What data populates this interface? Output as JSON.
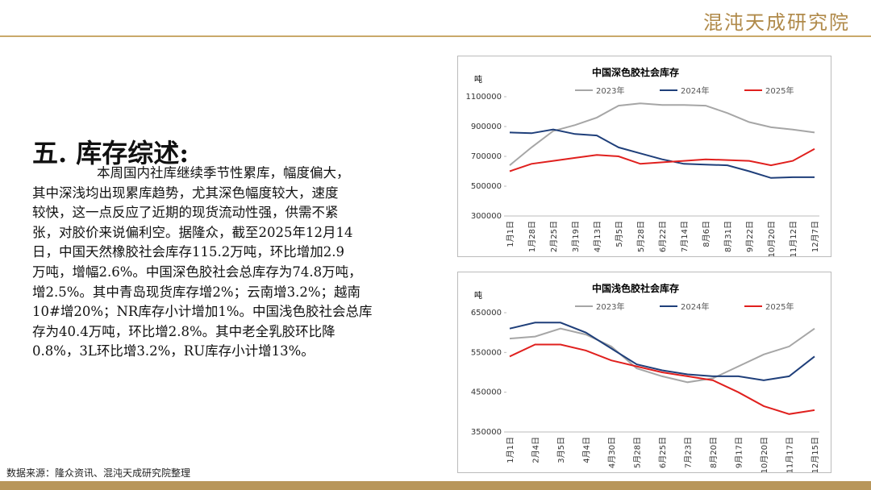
{
  "header": {
    "logo": "混沌天成研究院"
  },
  "section": {
    "title": "五. 库存综述:",
    "body_lines": [
      "本周国内社库继续季节性累库，幅度偏大，",
      "其中深浅均出现累库趋势，尤其深色幅度较大，速度",
      "较快，这一点反应了近期的现货流动性强，供需不紧",
      "张，对胶价来说偏利空。据隆众，截至2025年12月14",
      "日，中国天然橡胶社会库存115.2万吨，环比增加2.9",
      "万吨，增幅2.6%。中国深色胶社会总库存为74.8万吨，",
      "增2.5%。其中青岛现货库存增2%；云南增3.2%；越南",
      "10#增20%；NR库存小计增加1%。中国浅色胶社会总库",
      "存为40.4万吨，环比增2.8%。其中老全乳胶环比降",
      "0.8%，3L环比增3.2%，RU库存小计增13%。"
    ]
  },
  "source": "数据来源：隆众资讯、混沌天成研究院整理",
  "chart_data": [
    {
      "type": "line",
      "title": "中国深色胶社会库存",
      "y_label": "吨",
      "categories": [
        "1月1日",
        "1月28日",
        "2月25日",
        "3月19日",
        "4月13日",
        "5月5日",
        "5月28日",
        "6月22日",
        "7月14日",
        "8月6日",
        "8月31日",
        "9月22日",
        "10月20日",
        "11月12日",
        "12月7日"
      ],
      "series": [
        {
          "name": "2023年",
          "color": "#a6a6a6",
          "values": [
            640000,
            760000,
            870000,
            910000,
            960000,
            1040000,
            1055000,
            1045000,
            1045000,
            1040000,
            990000,
            930000,
            895000,
            880000,
            860000
          ]
        },
        {
          "name": "2024年",
          "color": "#1f3f7a",
          "values": [
            860000,
            855000,
            880000,
            850000,
            840000,
            760000,
            720000,
            680000,
            650000,
            645000,
            640000,
            600000,
            555000,
            560000,
            560000
          ]
        },
        {
          "name": "2025年",
          "color": "#e0201e",
          "values": [
            600000,
            650000,
            670000,
            690000,
            710000,
            700000,
            650000,
            660000,
            670000,
            680000,
            675000,
            670000,
            640000,
            670000,
            750000
          ]
        }
      ],
      "ylim": [
        300000,
        1100000
      ],
      "yticks": [
        300000,
        500000,
        700000,
        900000,
        1100000
      ]
    },
    {
      "type": "line",
      "title": "中国浅色胶社会库存",
      "y_label": "吨",
      "categories": [
        "1月1日",
        "2月4日",
        "3月5日",
        "4月4日",
        "4月30日",
        "5月28日",
        "6月25日",
        "7月23日",
        "8月20日",
        "9月17日",
        "10月20日",
        "11月17日",
        "12月15日"
      ],
      "series": [
        {
          "name": "2023年",
          "color": "#a6a6a6",
          "values": [
            585000,
            590000,
            610000,
            595000,
            565000,
            510000,
            490000,
            475000,
            485000,
            515000,
            545000,
            565000,
            610000
          ]
        },
        {
          "name": "2024年",
          "color": "#1f3f7a",
          "values": [
            610000,
            625000,
            625000,
            600000,
            560000,
            520000,
            505000,
            495000,
            490000,
            490000,
            480000,
            490000,
            540000
          ]
        },
        {
          "name": "2025年",
          "color": "#e0201e",
          "values": [
            540000,
            570000,
            570000,
            555000,
            530000,
            515000,
            500000,
            490000,
            480000,
            450000,
            415000,
            395000,
            405000
          ]
        }
      ],
      "ylim": [
        350000,
        650000
      ],
      "yticks": [
        350000,
        450000,
        550000,
        650000
      ]
    }
  ]
}
